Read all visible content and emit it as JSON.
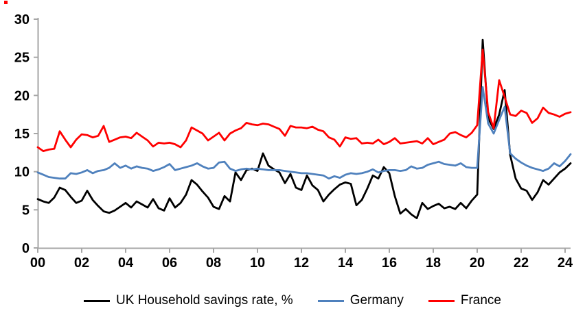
{
  "chart_data": {
    "type": "line",
    "title": "",
    "xlabel": "",
    "ylabel": "",
    "grid": false,
    "legend_position": "bottom",
    "xlim": [
      2000,
      2024.25
    ],
    "ylim": [
      0,
      30
    ],
    "x_start": 2000,
    "x_step": 0.25,
    "frequency": "quarterly",
    "axis_color": "#a6a6a6",
    "tick_label_color": "#000000",
    "background_color": "#ffffff",
    "y_tick_values": [
      0,
      5,
      10,
      15,
      20,
      25,
      30
    ],
    "y_tick_labels": [
      "0",
      "5",
      "10",
      "15",
      "20",
      "25",
      "30"
    ],
    "x_tick_years": [
      2000,
      2002,
      2004,
      2006,
      2008,
      2010,
      2012,
      2014,
      2016,
      2018,
      2020,
      2022,
      2024
    ],
    "x_tick_labels": [
      "00",
      "02",
      "04",
      "06",
      "08",
      "10",
      "12",
      "14",
      "16",
      "18",
      "20",
      "22",
      "24"
    ],
    "series": [
      {
        "id": "uk",
        "name": "UK Household savings rate, %",
        "color": "#000000",
        "values": [
          6.4,
          6.1,
          5.9,
          6.6,
          7.9,
          7.6,
          6.7,
          5.9,
          6.2,
          7.5,
          6.3,
          5.5,
          4.8,
          4.6,
          4.9,
          5.4,
          5.9,
          5.3,
          6.1,
          5.7,
          5.3,
          6.4,
          5.2,
          4.9,
          6.5,
          5.3,
          5.9,
          7.0,
          8.9,
          8.3,
          7.4,
          6.6,
          5.4,
          5.1,
          6.8,
          6.1,
          9.9,
          8.9,
          10.2,
          10.4,
          10.1,
          12.4,
          10.8,
          10.3,
          9.9,
          8.5,
          9.7,
          7.9,
          7.6,
          9.5,
          8.2,
          7.6,
          6.1,
          7.0,
          7.7,
          8.3,
          8.6,
          8.4,
          5.6,
          6.3,
          7.8,
          9.5,
          9.1,
          10.6,
          9.8,
          6.8,
          4.5,
          5.1,
          4.4,
          3.9,
          5.9,
          5.1,
          5.5,
          5.8,
          5.2,
          5.4,
          5.1,
          5.9,
          5.2,
          6.2,
          7.0,
          27.3,
          17.0,
          15.6,
          17.5,
          20.7,
          12.2,
          9.1,
          7.8,
          7.5,
          6.3,
          7.3,
          8.9,
          8.3,
          9.1,
          9.9,
          10.4,
          11.1
        ]
      },
      {
        "id": "germany",
        "name": "Germany",
        "color": "#4f81bd",
        "values": [
          9.9,
          9.6,
          9.3,
          9.2,
          9.1,
          9.1,
          9.8,
          9.7,
          9.9,
          10.2,
          9.8,
          10.1,
          10.2,
          10.5,
          11.1,
          10.5,
          10.8,
          10.4,
          10.7,
          10.5,
          10.4,
          10.1,
          10.3,
          10.6,
          11.0,
          10.2,
          10.4,
          10.6,
          10.8,
          11.1,
          10.7,
          10.4,
          10.5,
          11.2,
          11.3,
          10.4,
          10.1,
          10.3,
          10.4,
          10.3,
          10.4,
          10.3,
          10.2,
          10.2,
          10.2,
          10.1,
          10.0,
          9.9,
          9.8,
          9.8,
          9.7,
          9.6,
          9.5,
          9.1,
          9.4,
          9.2,
          9.6,
          9.8,
          9.7,
          9.8,
          10.0,
          10.3,
          9.9,
          10.1,
          10.2,
          10.2,
          10.1,
          10.2,
          10.7,
          10.4,
          10.5,
          10.9,
          11.1,
          11.3,
          11.0,
          10.9,
          10.8,
          11.1,
          10.6,
          10.5,
          10.5,
          21.1,
          16.3,
          15.0,
          16.8,
          18.5,
          12.4,
          11.7,
          11.2,
          10.8,
          10.5,
          10.3,
          10.1,
          10.4,
          11.1,
          10.7,
          11.4,
          12.3
        ]
      },
      {
        "id": "france",
        "name": "France",
        "color": "#ff0000",
        "values": [
          13.2,
          12.7,
          12.9,
          13.0,
          15.3,
          14.2,
          13.2,
          14.2,
          14.9,
          14.8,
          14.5,
          14.7,
          16.0,
          13.9,
          14.2,
          14.5,
          14.6,
          14.4,
          15.1,
          14.6,
          14.1,
          13.3,
          13.8,
          13.7,
          13.8,
          13.6,
          13.2,
          14.1,
          15.8,
          15.4,
          15.0,
          14.1,
          14.6,
          15.1,
          14.1,
          15.0,
          15.4,
          15.7,
          16.4,
          16.2,
          16.1,
          16.3,
          16.2,
          15.9,
          15.6,
          14.7,
          16.0,
          15.8,
          15.8,
          15.7,
          15.9,
          15.5,
          15.3,
          14.5,
          14.2,
          13.3,
          14.5,
          14.3,
          14.4,
          13.7,
          13.8,
          13.7,
          14.2,
          13.6,
          13.9,
          14.4,
          13.7,
          13.8,
          13.9,
          14.0,
          13.7,
          14.4,
          13.6,
          13.9,
          14.2,
          15.0,
          15.2,
          14.8,
          14.5,
          15.1,
          16.1,
          26.0,
          17.8,
          15.7,
          22.0,
          19.8,
          17.5,
          17.3,
          18.0,
          17.7,
          16.4,
          17.0,
          18.4,
          17.7,
          17.5,
          17.2,
          17.6,
          17.8
        ]
      }
    ]
  },
  "legend": {
    "items": [
      "UK Household savings rate, %",
      "Germany",
      "France"
    ]
  },
  "artifacts": {
    "corner_dot_color": "#ff0000"
  }
}
